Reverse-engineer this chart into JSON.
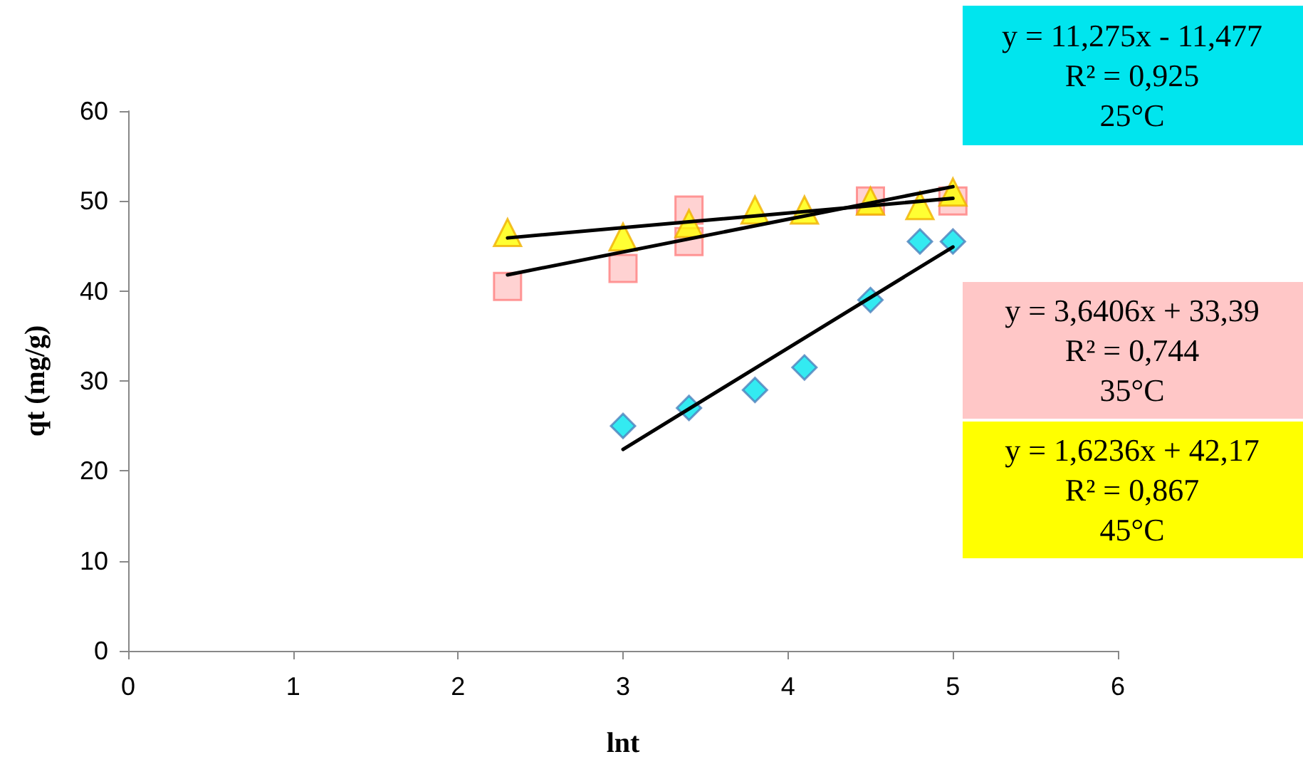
{
  "chart_data": {
    "type": "scatter",
    "xlabel": "lnt",
    "ylabel": "qt (mg/g)",
    "xlim": [
      0,
      6
    ],
    "xticks": [
      0,
      1,
      2,
      3,
      4,
      5,
      6
    ],
    "ylim": [
      0,
      60
    ],
    "yticks": [
      0,
      10,
      20,
      30,
      40,
      50,
      60
    ],
    "grid": false,
    "series": [
      {
        "type": "scatter",
        "marker": "diamond",
        "color": "#00e5ee",
        "x": [
          3,
          3.4,
          3.8,
          4.1,
          4.5,
          4.8,
          5
        ],
        "values": [
          25,
          27,
          29,
          31.5,
          39,
          45.5,
          45.5
        ]
      },
      {
        "type": "scatter",
        "marker": "square",
        "color": "#ffc7c7",
        "x": [
          2.3,
          3,
          3.4,
          3.4,
          4.5,
          5
        ],
        "values": [
          40.5,
          42.5,
          45.5,
          49,
          50,
          50
        ]
      },
      {
        "type": "scatter",
        "marker": "triangle",
        "color": "#ffff00",
        "x": [
          2.3,
          3,
          3.4,
          3.8,
          4.1,
          4.5,
          4.8,
          5
        ],
        "values": [
          46.5,
          46,
          47.5,
          49,
          49,
          50,
          49.5,
          51
        ]
      },
      {
        "type": "line",
        "marker": "none",
        "color": "#000000",
        "x": [
          3,
          5
        ],
        "values": [
          22.4,
          44.9
        ]
      },
      {
        "type": "line",
        "marker": "none",
        "color": "#000000",
        "x": [
          2.3,
          5
        ],
        "values": [
          41.8,
          51.6
        ]
      },
      {
        "type": "line",
        "marker": "none",
        "color": "#000000",
        "x": [
          2.3,
          5
        ],
        "values": [
          45.9,
          50.3
        ]
      }
    ],
    "annotations": [
      "y = 11,275x - 11,477\nR² = 0,925\n25°C",
      "y = 3,6406x + 33,39\nR² = 0,744\n35°C",
      "y = 1,6236x + 42,17\nR² = 0,867\n45°C"
    ]
  }
}
